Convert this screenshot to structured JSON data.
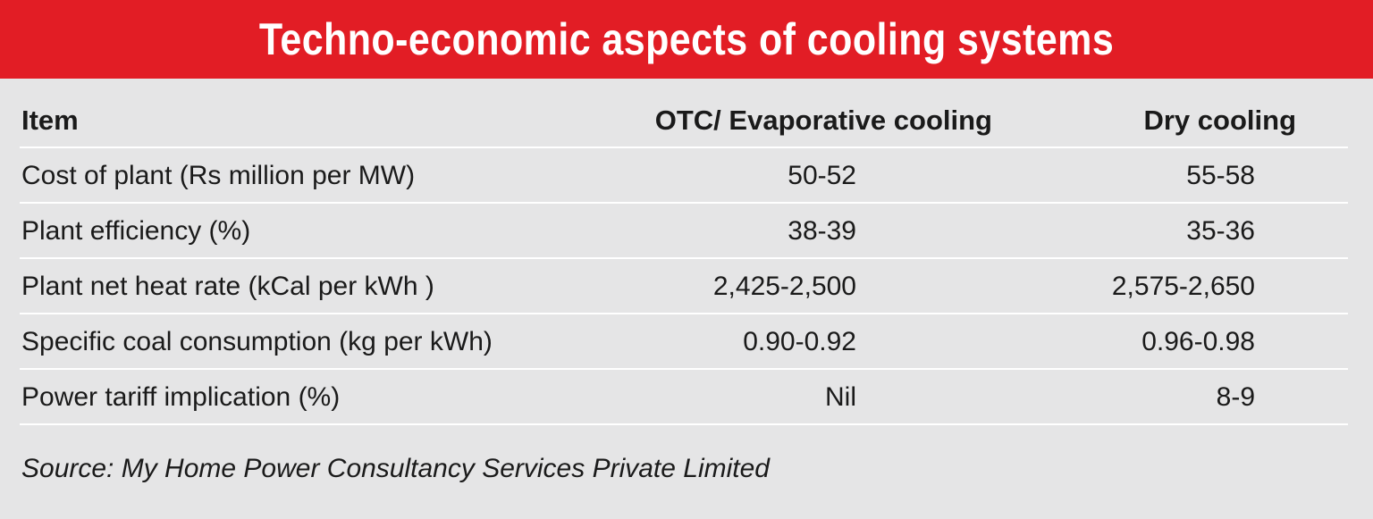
{
  "title": "Techno-economic aspects of cooling systems",
  "table": {
    "headers": {
      "item": "Item",
      "otc": "OTC/ Evaporative cooling",
      "dry": "Dry cooling"
    },
    "rows": [
      {
        "item": "Cost of plant (Rs million per MW)",
        "otc": "50-52",
        "dry": "55-58"
      },
      {
        "item": "Plant efficiency (%)",
        "otc": "38-39",
        "dry": "35-36"
      },
      {
        "item": "Plant net heat rate (kCal per kWh )",
        "otc": "2,425-2,500",
        "dry": "2,575-2,650"
      },
      {
        "item": "Specific coal consumption (kg per kWh)",
        "otc": "0.90-0.92",
        "dry": "0.96-0.98"
      },
      {
        "item": "Power tariff implication (%)",
        "otc": "Nil",
        "dry": "8-9"
      }
    ]
  },
  "source": "Source: My Home Power Consultancy Services Private Limited",
  "colors": {
    "title_background": "#e21d25",
    "page_background": "#e5e5e6",
    "rule": "#ffffff"
  }
}
